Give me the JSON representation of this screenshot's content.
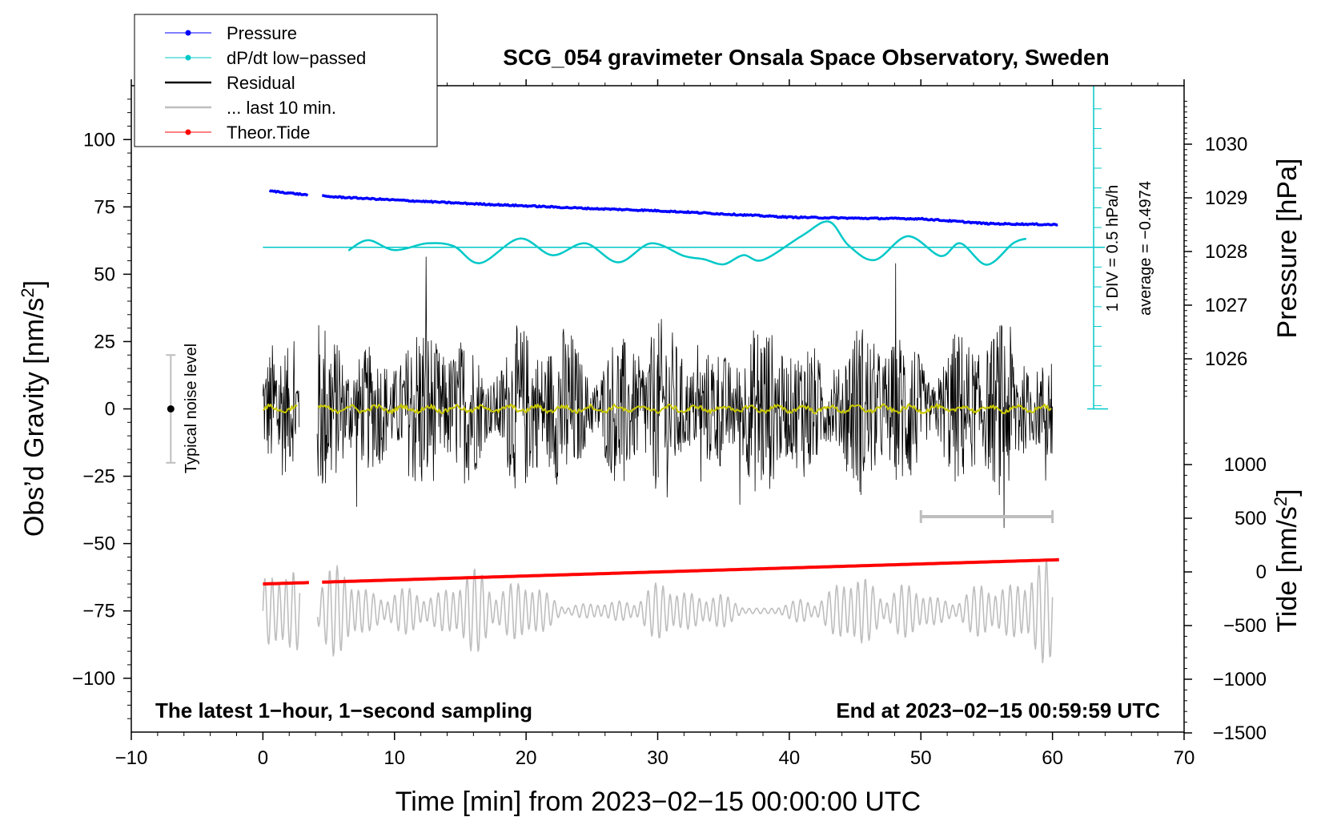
{
  "chart_data": {
    "type": "line",
    "title": "SCG_054 gravimeter Onsala Space Observatory, Sweden",
    "xlabel": "Time [min] from 2023−02−15 00:00:00 UTC",
    "ylabel_left": "Obs’d Gravity [nm/s²]",
    "ylabel_right_top": "Pressure [hPa]",
    "ylabel_right_bottom": "Tide [nm/s²]",
    "x_ticks": [
      -10,
      0,
      10,
      20,
      30,
      40,
      50,
      60,
      70
    ],
    "x_tick_labels": [
      "−10",
      "0",
      "10",
      "20",
      "30",
      "40",
      "50",
      "60",
      "70"
    ],
    "xlim": [
      -10,
      70
    ],
    "ylim_left": [
      -120,
      120
    ],
    "y_left_ticks": [
      100,
      75,
      50,
      25,
      0,
      -25,
      -50,
      -75,
      -100
    ],
    "y_left_tick_labels": [
      "100",
      "75",
      "50",
      "25",
      "0",
      "−25",
      "−50",
      "−75",
      "−100"
    ],
    "pressure_axis": {
      "ticks": [
        1026,
        1027,
        1028,
        1029,
        1030
      ],
      "tick_labels": [
        "1026",
        "1027",
        "1028",
        "1029",
        "1030"
      ]
    },
    "tide_axis": {
      "ticks": [
        1000,
        500,
        0,
        -500,
        -1000,
        -1500
      ],
      "tick_labels": [
        "1000",
        "500",
        "0",
        "−500",
        "−1000",
        "−1500"
      ]
    },
    "legend": [
      {
        "label": "Pressure",
        "color": "#0000ff",
        "marker": true
      },
      {
        "label": "dP/dt low−passed",
        "color": "#00c8c8",
        "marker": true
      },
      {
        "label": "Residual",
        "color": "#000000",
        "marker": false
      },
      {
        "label": "... last 10 min.",
        "color": "#bebebe",
        "marker": false
      },
      {
        "label": "Theor.Tide",
        "color": "#ff0000",
        "marker": true
      }
    ],
    "series": [
      {
        "name": "Pressure",
        "color": "#0000ff",
        "x": [
          0.5,
          3.5,
          4.5,
          10,
          15,
          20,
          25,
          30,
          35,
          40,
          45,
          50,
          55,
          60.5
        ],
        "y": [
          1029.13,
          1029.05,
          1029.03,
          1028.96,
          1028.9,
          1028.85,
          1028.8,
          1028.76,
          1028.7,
          1028.64,
          1028.62,
          1028.61,
          1028.52,
          1028.5
        ]
      },
      {
        "name": "dP/dt low-passed",
        "color": "#00c8c8",
        "x": [
          6.5,
          8,
          10,
          12.5,
          14.5,
          16.5,
          19.5,
          22,
          24.5,
          27,
          29.5,
          32,
          33.5,
          35,
          36.5,
          38,
          41,
          43,
          44.5,
          46.5,
          49,
          51.5,
          53,
          55,
          57,
          58
        ],
        "y": [
          -0.08,
          0.18,
          -0.07,
          0.1,
          0.03,
          -0.4,
          0.22,
          -0.2,
          0.1,
          -0.38,
          0.1,
          -0.22,
          -0.3,
          -0.43,
          -0.2,
          -0.32,
          0.3,
          0.65,
          0.05,
          -0.32,
          0.28,
          -0.22,
          0.1,
          -0.44,
          0.1,
          0.22
        ]
      },
      {
        "name": "Residual",
        "color": "#000000",
        "x_range": [
          0,
          60
        ],
        "amplitude": 50,
        "gap": [
          2.8,
          4.1
        ]
      },
      {
        "name": "Residual smoothed",
        "color": "#c8c800",
        "x_range": [
          0,
          60
        ],
        "amplitude": 2
      },
      {
        "name": "... last 10 min.",
        "color": "#bebebe",
        "x_range": [
          0,
          60
        ],
        "scale": 10,
        "gap": [
          2.8,
          4.1
        ]
      },
      {
        "name": "Theor.Tide",
        "color": "#ff0000",
        "x": [
          0,
          60.5
        ],
        "y": [
          -65,
          -56
        ]
      }
    ],
    "dpdt_reference": {
      "label_div": "1 DIV = 0.5 hPa/h",
      "label_avg": "average = −0.4974",
      "baseline_y": 60,
      "div_value": 0.5
    },
    "noise_bar": {
      "label": "Typical noise level",
      "x": -7,
      "center": 0,
      "half_range": 20
    },
    "last_10_bar": {
      "x": [
        50,
        60
      ],
      "y": -40
    },
    "annotations": {
      "bottom_left": "The latest 1−hour, 1−second sampling",
      "bottom_right": "End at 2023−02−15 00:59:59 UTC"
    }
  }
}
